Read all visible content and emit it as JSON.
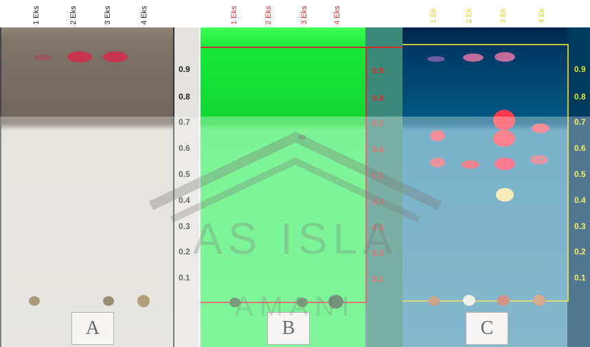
{
  "panels": [
    {
      "letter": "A",
      "lanes": [
        "1 Eks",
        "2 Eks",
        "3 Eks",
        "4 Eks"
      ],
      "rf_ticks": [
        "0.9",
        "0.8",
        "0.7",
        "0.6",
        "0.5",
        "0.4",
        "0.3",
        "0.2",
        "0.1"
      ],
      "tick_color": "#222222"
    },
    {
      "letter": "B",
      "lanes": [
        "1 Eks",
        "2 Eks",
        "3 Eks",
        "4 Eks"
      ],
      "rf_ticks": [
        "0.9",
        "0.8",
        "0.7",
        "0.6",
        "0.5",
        "0.4",
        "0.3",
        "0.2",
        "0.1"
      ],
      "tick_color": "#e03030"
    },
    {
      "letter": "C",
      "lanes": [
        "1 Ek",
        "2 Ek",
        "3 Ek",
        "4 Ek"
      ],
      "rf_ticks": [
        "0.9",
        "0.8",
        "0.7",
        "0.6",
        "0.5",
        "0.4",
        "0.3",
        "0.2",
        "0.1"
      ],
      "tick_color": "#e8e820"
    }
  ],
  "watermark": {
    "line1": "AS ISLA",
    "line2": "AMANI"
  }
}
